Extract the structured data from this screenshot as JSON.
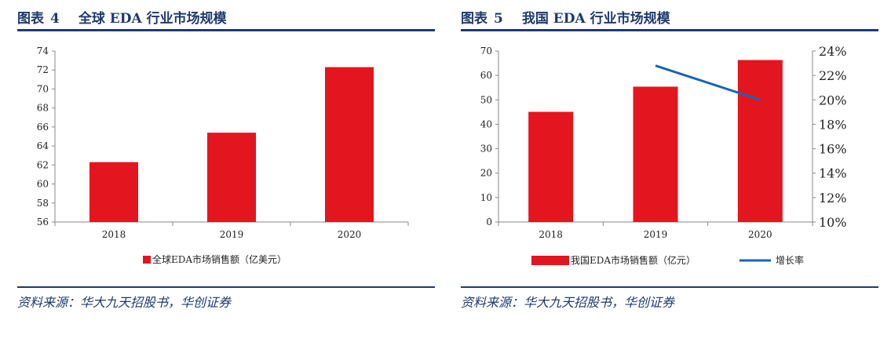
{
  "colors": {
    "bar": "#e3151f",
    "line": "#1a64b4",
    "accent": "#1e3a6e"
  },
  "figures": [
    {
      "label": "图表",
      "number": "4",
      "title": "全球 EDA 行业市场规模",
      "source": "资料来源：华大九天招股书，华创证券"
    },
    {
      "label": "图表",
      "number": "5",
      "title": "我国 EDA 行业市场规模",
      "source": "资料来源：华大九天招股书，华创证券"
    }
  ],
  "chart_data": [
    {
      "type": "bar",
      "categories": [
        "2018",
        "2019",
        "2020"
      ],
      "series": [
        {
          "name": "全球EDA市场销售额（亿美元）",
          "values": [
            62.3,
            65.4,
            72.3
          ]
        }
      ],
      "ylim": [
        56,
        74
      ],
      "yticks": [
        56,
        58,
        60,
        62,
        64,
        66,
        68,
        70,
        72,
        74
      ],
      "grid": false,
      "legend": "bottom"
    },
    {
      "type": "bar",
      "categories": [
        "2018",
        "2019",
        "2020"
      ],
      "series": [
        {
          "name": "我国EDA市场销售额（亿元）",
          "type": "bar",
          "axis": "left",
          "values": [
            45.1,
            55.4,
            66.3
          ]
        },
        {
          "name": "增长率",
          "type": "line",
          "axis": "right",
          "values": [
            null,
            0.228,
            0.2
          ]
        }
      ],
      "ylim": [
        0,
        70
      ],
      "yticks": [
        0,
        10,
        20,
        30,
        40,
        50,
        60,
        70
      ],
      "y2lim": [
        0.1,
        0.24
      ],
      "y2ticks": [
        "10%",
        "12%",
        "14%",
        "16%",
        "18%",
        "20%",
        "22%",
        "24%"
      ],
      "grid": false,
      "legend": "bottom"
    }
  ]
}
